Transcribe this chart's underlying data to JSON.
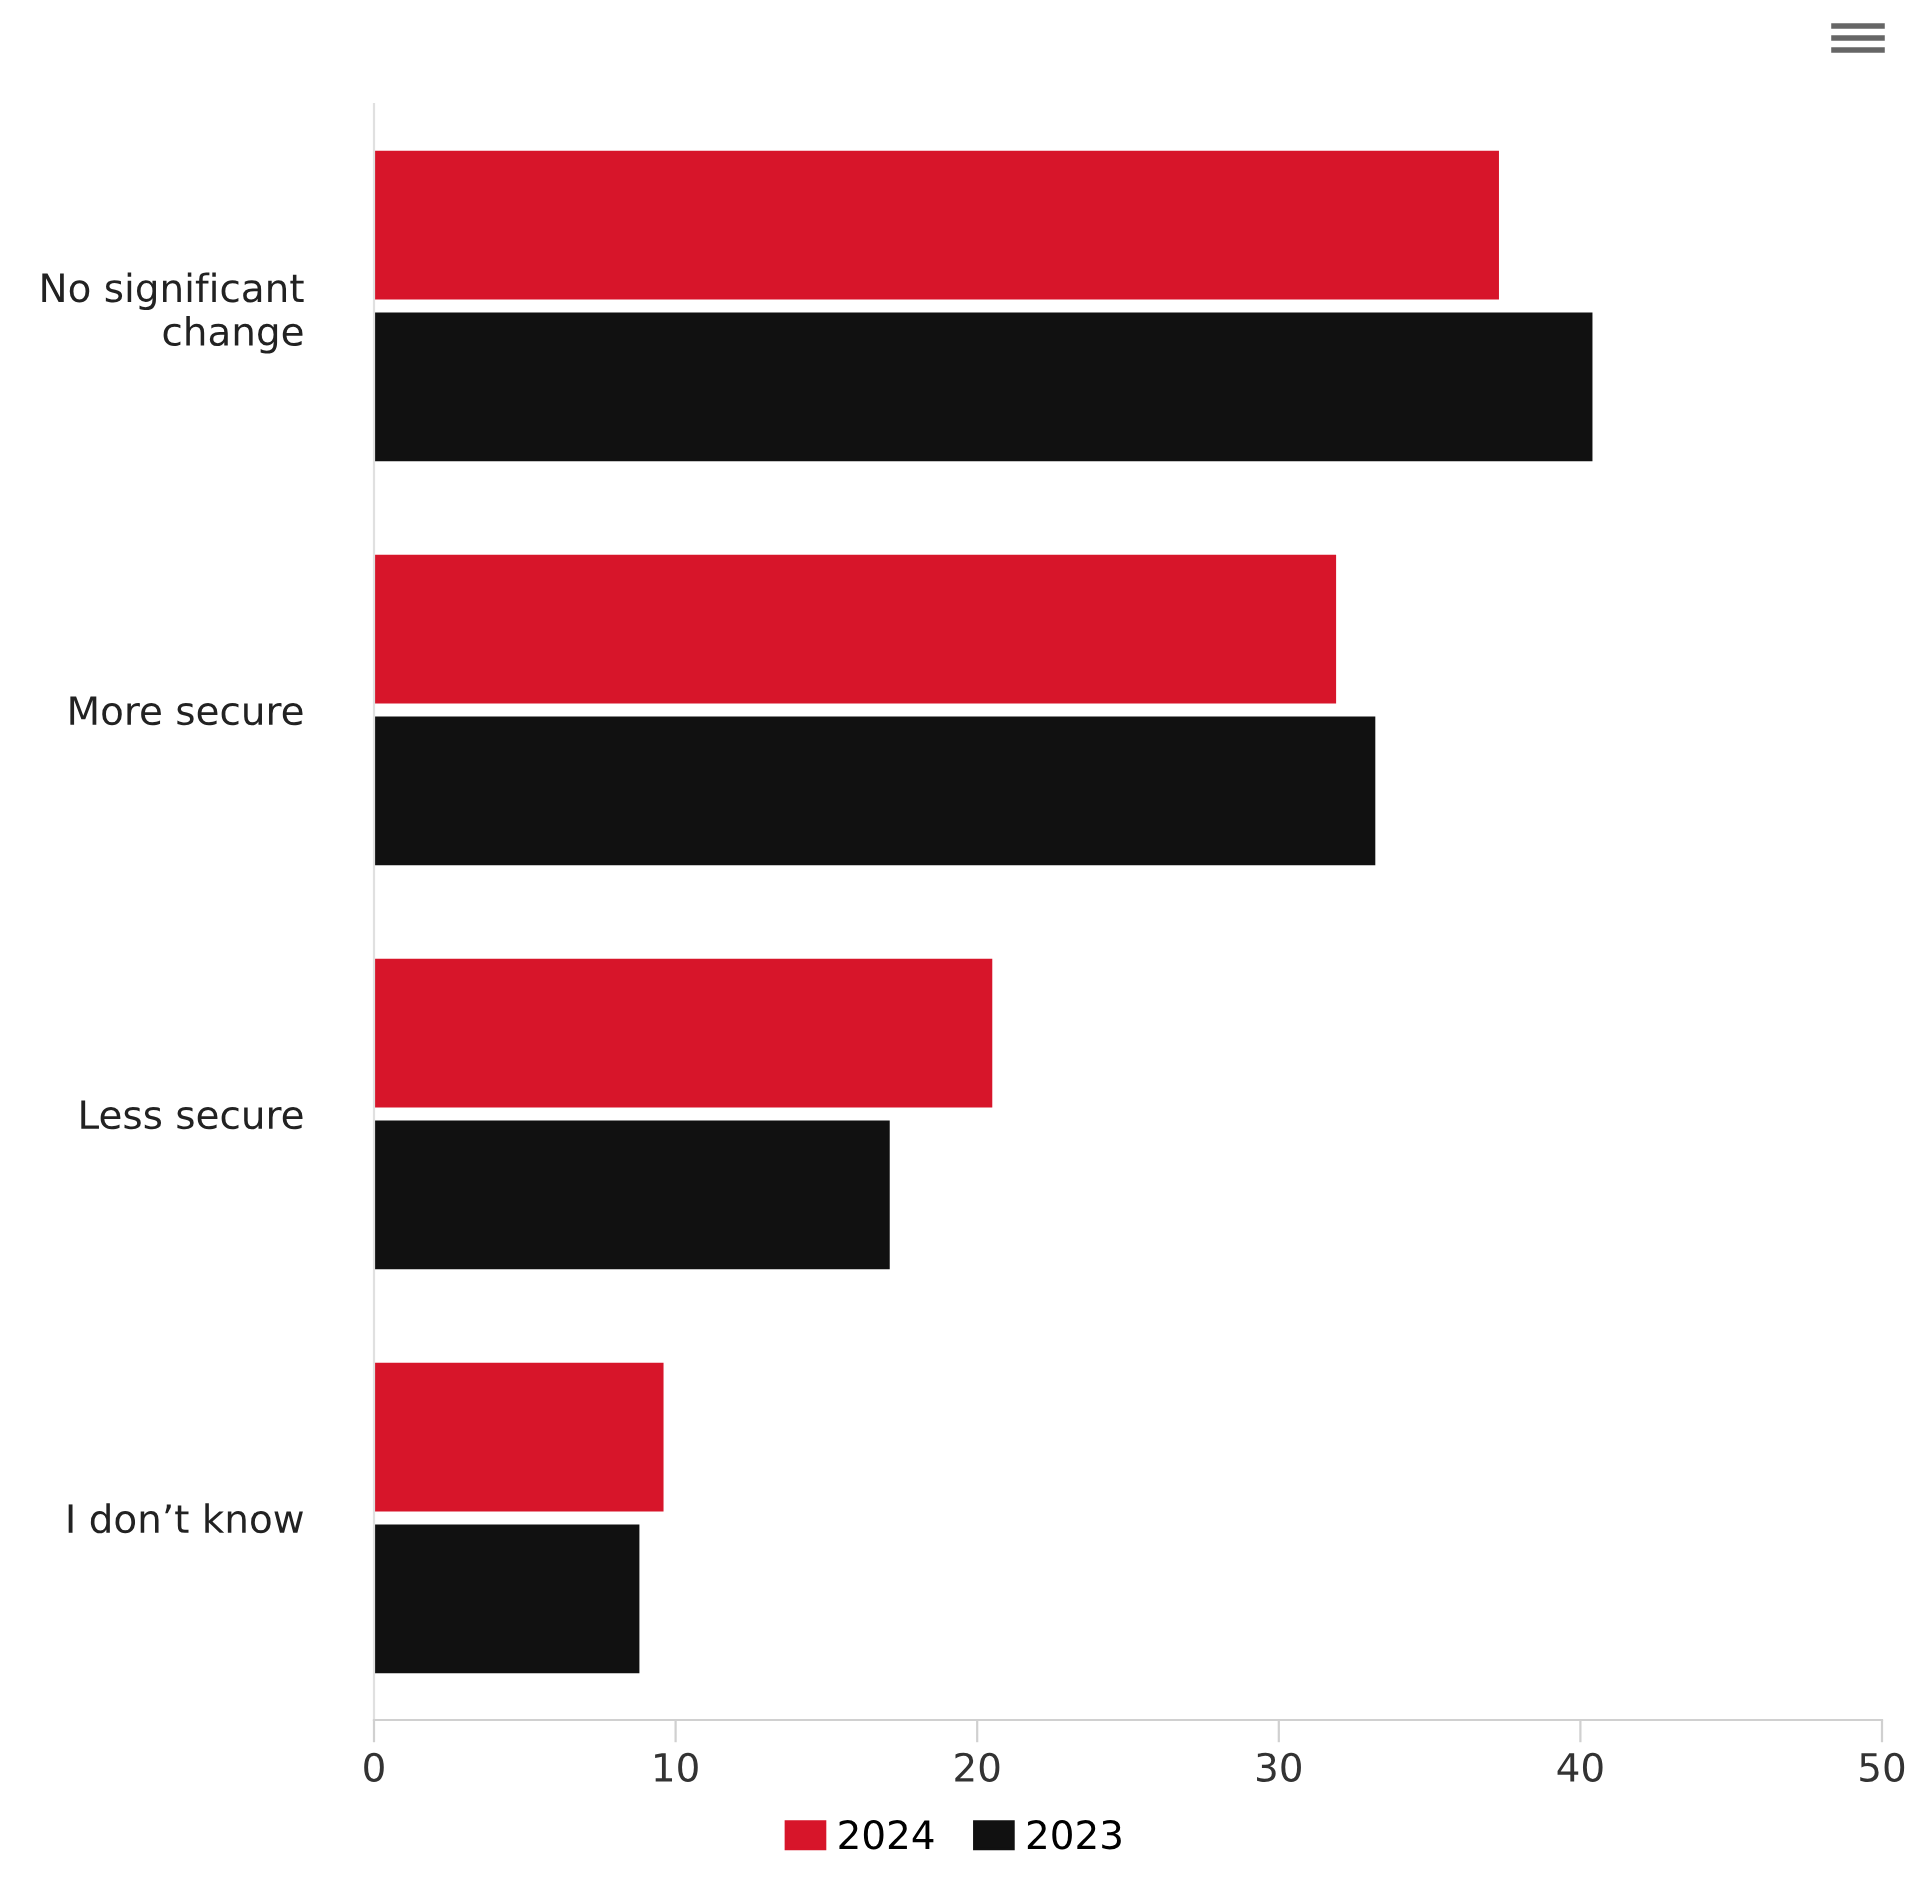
{
  "chart_data": {
    "type": "bar",
    "orientation": "horizontal",
    "categories": [
      "No significant\nchange",
      "More secure",
      "Less secure",
      "I don’t know"
    ],
    "series": [
      {
        "name": "2024",
        "color": "#d7152a",
        "values": [
          37.3,
          31.9,
          20.5,
          9.6
        ]
      },
      {
        "name": "2023",
        "color": "#111111",
        "values": [
          40.4,
          33.2,
          17.1,
          8.8
        ]
      }
    ],
    "xlim": [
      0,
      50
    ],
    "xticks": [
      0,
      10,
      20,
      30,
      40,
      50
    ],
    "grid": false,
    "legend": "bottom"
  }
}
